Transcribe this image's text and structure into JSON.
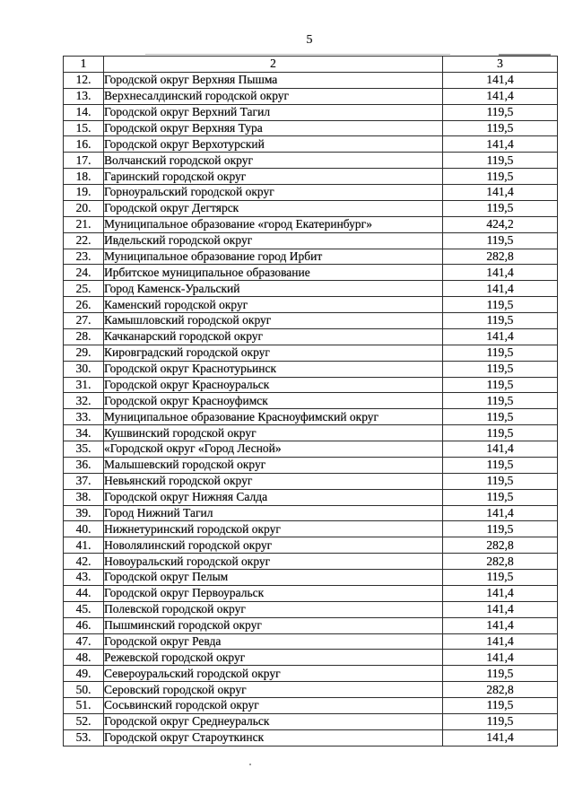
{
  "page": {
    "number": "5"
  },
  "table": {
    "headers": [
      "1",
      "2",
      "3"
    ],
    "rows": [
      {
        "num": "12.",
        "name": "Городской округ Верхняя Пышма",
        "value": "141,4"
      },
      {
        "num": "13.",
        "name": "Верхнесалдинский городской округ",
        "value": "141,4"
      },
      {
        "num": "14.",
        "name": "Городской округ Верхний Тагил",
        "value": "119,5"
      },
      {
        "num": "15.",
        "name": "Городской округ Верхняя Тура",
        "value": "119,5"
      },
      {
        "num": "16.",
        "name": "Городской округ Верхотурский",
        "value": "141,4"
      },
      {
        "num": "17.",
        "name": "Волчанский городской округ",
        "value": "119,5"
      },
      {
        "num": "18.",
        "name": "Гаринский городской округ",
        "value": "119,5"
      },
      {
        "num": "19.",
        "name": "Горноуральский городской округ",
        "value": "141,4"
      },
      {
        "num": "20.",
        "name": "Городской округ Дегтярск",
        "value": "119,5"
      },
      {
        "num": "21.",
        "name": "Муниципальное образование «город Екатеринбург»",
        "value": "424,2"
      },
      {
        "num": "22.",
        "name": "Ивдельский городской округ",
        "value": "119,5"
      },
      {
        "num": "23.",
        "name": "Муниципальное образование город Ирбит",
        "value": "282,8"
      },
      {
        "num": "24.",
        "name": "Ирбитское муниципальное образование",
        "value": "141,4"
      },
      {
        "num": "25.",
        "name": "Город Каменск-Уральский",
        "value": "141,4"
      },
      {
        "num": "26.",
        "name": "Каменский городской округ",
        "value": "119,5"
      },
      {
        "num": "27.",
        "name": "Камышловский городской округ",
        "value": "119,5"
      },
      {
        "num": "28.",
        "name": "Качканарский городской округ",
        "value": "141,4"
      },
      {
        "num": "29.",
        "name": "Кировградский городской округ",
        "value": "119,5"
      },
      {
        "num": "30.",
        "name": "Городской округ Краснотурьинск",
        "value": "119,5"
      },
      {
        "num": "31.",
        "name": "Городской округ Красноуральск",
        "value": "119,5"
      },
      {
        "num": "32.",
        "name": "Городской округ Красноуфимск",
        "value": "119,5"
      },
      {
        "num": "33.",
        "name": "Муниципальное образование Красноуфимский округ",
        "value": "119,5"
      },
      {
        "num": "34.",
        "name": "Кушвинский городской округ",
        "value": "119,5"
      },
      {
        "num": "35.",
        "name": "«Городской округ «Город Лесной»",
        "value": "141,4"
      },
      {
        "num": "36.",
        "name": "Малышевский городской округ",
        "value": "119,5"
      },
      {
        "num": "37.",
        "name": "Невьянский городской округ",
        "value": "119,5"
      },
      {
        "num": "38.",
        "name": "Городской округ Нижняя Салда",
        "value": "119,5"
      },
      {
        "num": "39.",
        "name": "Город Нижний Тагил",
        "value": "141,4"
      },
      {
        "num": "40.",
        "name": "Нижнетуринский городской округ",
        "value": "119,5"
      },
      {
        "num": "41.",
        "name": "Новолялинский городской округ",
        "value": "282,8"
      },
      {
        "num": "42.",
        "name": "Новоуральский городской округ",
        "value": "282,8"
      },
      {
        "num": "43.",
        "name": "Городской округ Пелым",
        "value": "119,5"
      },
      {
        "num": "44.",
        "name": "Городской округ Первоуральск",
        "value": "141,4"
      },
      {
        "num": "45.",
        "name": "Полевской городской округ",
        "value": "141,4"
      },
      {
        "num": "46.",
        "name": "Пышминский городской округ",
        "value": "141,4"
      },
      {
        "num": "47.",
        "name": "Городской округ Ревда",
        "value": "141,4"
      },
      {
        "num": "48.",
        "name": "Режевской городской округ",
        "value": "141,4"
      },
      {
        "num": "49.",
        "name": "Североуральский городской округ",
        "value": "119,5"
      },
      {
        "num": "50.",
        "name": "Серовский городской округ",
        "value": "282,8"
      },
      {
        "num": "51.",
        "name": "Сосьвинский городской округ",
        "value": "119,5"
      },
      {
        "num": "52.",
        "name": "Городской округ Среднеуральск",
        "value": "119,5"
      },
      {
        "num": "53.",
        "name": "Городской округ Староуткинск",
        "value": "141,4"
      }
    ]
  },
  "colors": {
    "background": "#ffffff",
    "text": "#101010",
    "border": "#2d2d2d"
  }
}
